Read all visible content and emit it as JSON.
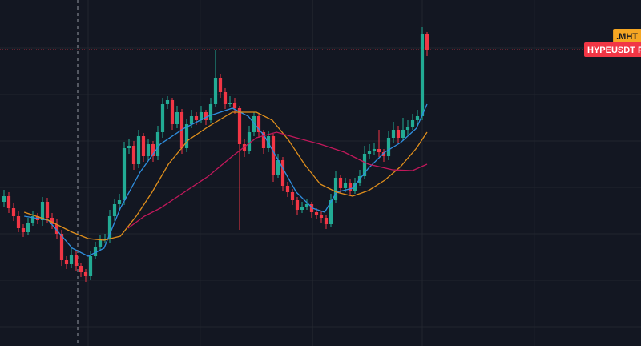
{
  "chart_data": {
    "type": "candlestick",
    "xlim": [
      -0.833,
      132.5
    ],
    "ylim": [
      0,
      432
    ],
    "xticks": [
      17.5,
      40.8,
      64.2,
      87,
      110.3
    ],
    "yticks": [
      24,
      82,
      140,
      198,
      256,
      314,
      372
    ],
    "grid": true,
    "up_color": "#22ab94",
    "down_color": "#f23645",
    "open": [
      180,
      187,
      172,
      162,
      147,
      142,
      154,
      162,
      157,
      180,
      160,
      152,
      140,
      107,
      102,
      114,
      100,
      92,
      87,
      112,
      124,
      132,
      134,
      162,
      177,
      182,
      247,
      250,
      227,
      262,
      237,
      252,
      237,
      267,
      302,
      307,
      277,
      292,
      247,
      277,
      287,
      282,
      292,
      282,
      302,
      334,
      317,
      302,
      304,
      297,
      252,
      244,
      267,
      287,
      267,
      247,
      262,
      214,
      232,
      200,
      192,
      182,
      170,
      174,
      177,
      167,
      164,
      160,
      152,
      182,
      210,
      197,
      204,
      194,
      204,
      212,
      240,
      244,
      246,
      242,
      237,
      260,
      270,
      260,
      270,
      274,
      282,
      287,
      390
    ],
    "high": [
      195,
      192,
      178,
      168,
      152,
      160,
      168,
      166,
      186,
      185,
      166,
      158,
      145,
      112,
      122,
      118,
      104,
      96,
      118,
      130,
      138,
      140,
      170,
      184,
      190,
      255,
      258,
      256,
      270,
      266,
      258,
      256,
      275,
      310,
      312,
      310,
      300,
      296,
      284,
      295,
      292,
      300,
      295,
      310,
      370,
      340,
      322,
      312,
      310,
      300,
      258,
      275,
      292,
      290,
      270,
      268,
      265,
      240,
      236,
      205,
      196,
      186,
      180,
      184,
      180,
      172,
      168,
      164,
      190,
      218,
      214,
      210,
      208,
      210,
      220,
      250,
      252,
      254,
      270,
      246,
      268,
      280,
      275,
      285,
      282,
      290,
      295,
      398,
      392
    ],
    "low": [
      174,
      166,
      156,
      142,
      136,
      138,
      150,
      152,
      150,
      154,
      146,
      134,
      100,
      96,
      98,
      94,
      86,
      80,
      82,
      108,
      118,
      128,
      128,
      156,
      170,
      176,
      240,
      220,
      222,
      230,
      232,
      230,
      232,
      260,
      296,
      270,
      272,
      240,
      242,
      272,
      276,
      278,
      276,
      278,
      298,
      310,
      296,
      298,
      290,
      145,
      236,
      240,
      262,
      260,
      240,
      242,
      205,
      210,
      194,
      186,
      176,
      164,
      166,
      170,
      160,
      158,
      154,
      146,
      148,
      178,
      190,
      192,
      188,
      190,
      200,
      208,
      234,
      238,
      236,
      230,
      232,
      254,
      254,
      256,
      264,
      270,
      276,
      282,
      362
    ],
    "close": [
      187,
      172,
      162,
      147,
      142,
      154,
      162,
      157,
      180,
      160,
      152,
      140,
      107,
      102,
      114,
      100,
      92,
      87,
      112,
      124,
      132,
      134,
      162,
      177,
      182,
      247,
      250,
      227,
      262,
      237,
      252,
      237,
      267,
      302,
      307,
      277,
      292,
      247,
      277,
      287,
      282,
      292,
      282,
      302,
      334,
      317,
      302,
      304,
      297,
      252,
      244,
      267,
      287,
      267,
      247,
      262,
      214,
      232,
      200,
      192,
      182,
      170,
      174,
      177,
      167,
      164,
      160,
      152,
      182,
      210,
      197,
      204,
      194,
      204,
      212,
      240,
      244,
      246,
      242,
      237,
      260,
      270,
      260,
      270,
      274,
      282,
      287,
      390,
      370
    ],
    "overlays": [
      {
        "color": "#2f8fe0",
        "x": [
          4.2,
          9.2,
          14.2,
          17.5,
          20.8,
          24.2,
          28.3,
          32.5,
          37.5,
          42.5,
          47.5,
          50.8,
          54.2,
          57.5,
          60.8,
          64.2,
          66.7,
          69.2,
          72.5,
          75.8,
          79.2,
          82.5,
          85.8,
          88
        ],
        "values": [
          162,
          157,
          122,
          112,
          122,
          172,
          217,
          252,
          272,
          287,
          297,
          287,
          262,
          227,
          192,
          172,
          167,
          192,
          197,
          222,
          242,
          254,
          272,
          302
        ]
      },
      {
        "color": "#e08f1c",
        "x": [
          4.2,
          9.2,
          14.2,
          17.5,
          20.8,
          24.2,
          27.5,
          30.8,
          34.2,
          38.3,
          42.5,
          47.5,
          52.5,
          55.8,
          59.2,
          62.5,
          65.8,
          69.2,
          72.5,
          75.8,
          79.2,
          82.5,
          85.8,
          88
        ],
        "values": [
          167,
          157,
          142,
          134,
          132,
          137,
          162,
          192,
          227,
          257,
          274,
          292,
          292,
          282,
          257,
          227,
          202,
          192,
          187,
          194,
          207,
          224,
          247,
          267
        ]
      },
      {
        "color": "#c2185b",
        "x": [
          25.8,
          29.2,
          32.5,
          37.5,
          42.5,
          47.5,
          52.5,
          56.7,
          60.8,
          65.8,
          70.8,
          75.8,
          80.8,
          85,
          88
        ],
        "values": [
          147,
          162,
          172,
          192,
          212,
          237,
          260,
          267,
          260,
          252,
          242,
          227,
          220,
          219,
          227
        ]
      }
    ],
    "last_price": 370,
    "tags": [
      {
        "text": ".MHT",
        "value": 387,
        "color": "#f5a623",
        "text_color": "#131722"
      },
      {
        "text": "HYPEUSDT P",
        "value": 370,
        "color": "#f23645",
        "text_color": "#ffffff"
      }
    ]
  }
}
